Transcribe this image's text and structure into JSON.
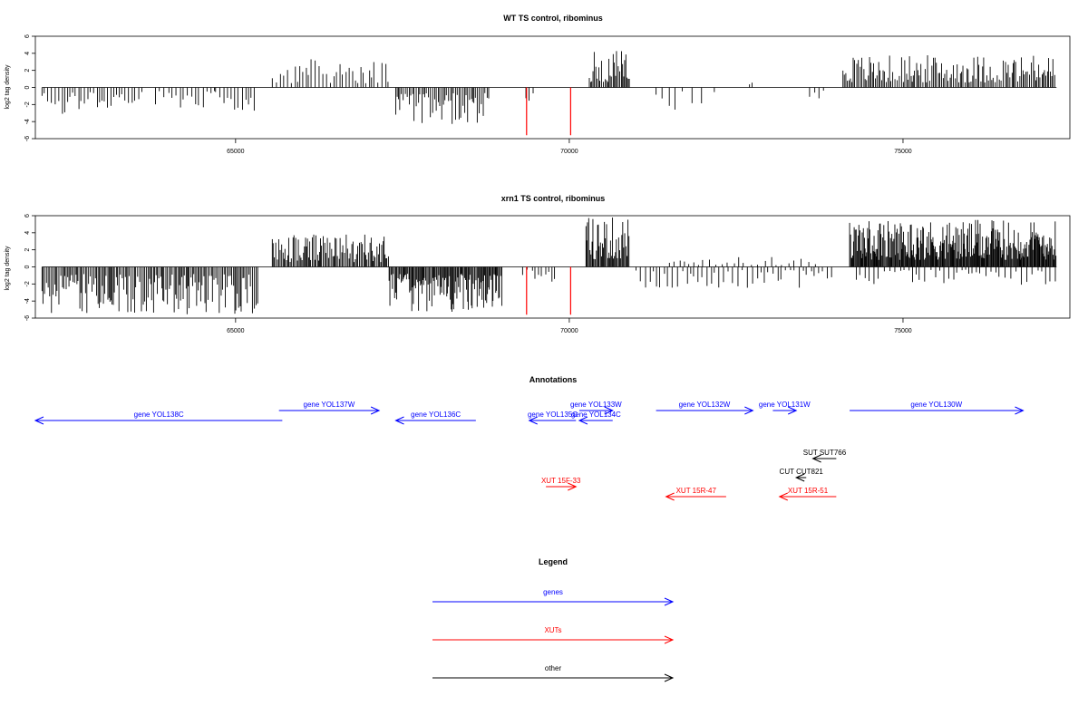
{
  "chart_data": [
    {
      "type": "bar",
      "title": "WT TS control, ribominus",
      "ylabel": "log2 tag density",
      "xlabel": "",
      "xlim": [
        62000,
        77500
      ],
      "ylim": [
        -6,
        6
      ],
      "xticks": [
        65000,
        70000,
        75000
      ],
      "xtick_labels": [
        "65000",
        "70000",
        "75000"
      ],
      "yticks": [
        -6,
        -4,
        -2,
        0,
        2,
        4,
        6
      ],
      "ytick_labels": [
        "-6",
        "-4",
        "-2",
        "0",
        "2",
        "4",
        "6"
      ],
      "grid": false,
      "bar_color": "#000000",
      "highlight_color": "#ff0000",
      "highlights": [
        {
          "x": 69360,
          "y": -5.6
        },
        {
          "x": 70020,
          "y": -5.6
        }
      ],
      "regions": [
        {
          "start": 62100,
          "end": 63600,
          "sign": -1,
          "max": 3.2,
          "step": 45
        },
        {
          "start": 63800,
          "end": 64700,
          "sign": -1,
          "max": 2.5,
          "step": 60
        },
        {
          "start": 64700,
          "end": 65300,
          "sign": -1,
          "max": 3.0,
          "step": 55
        },
        {
          "start": 65550,
          "end": 67300,
          "sign": 1,
          "max": 3.3,
          "step": 45
        },
        {
          "start": 67400,
          "end": 68800,
          "sign": -1,
          "max": 4.3,
          "step": 25
        },
        {
          "start": 69350,
          "end": 69500,
          "sign": -1,
          "max": 2.0,
          "step": 50
        },
        {
          "start": 70300,
          "end": 70900,
          "sign": 1,
          "max": 4.3,
          "step": 22
        },
        {
          "start": 71300,
          "end": 72300,
          "sign": -1,
          "max": 3.0,
          "step": 140
        },
        {
          "start": 72700,
          "end": 72750,
          "sign": 1,
          "max": 1.0,
          "step": 30
        },
        {
          "start": 73600,
          "end": 73900,
          "sign": -1,
          "max": 1.5,
          "step": 80
        },
        {
          "start": 74100,
          "end": 77300,
          "sign": 1,
          "max": 3.8,
          "step": 25
        }
      ]
    },
    {
      "type": "bar",
      "title": "xrn1 TS control, ribominus",
      "ylabel": "log2 tag density",
      "xlabel": "",
      "xlim": [
        62000,
        77500
      ],
      "ylim": [
        -6,
        6
      ],
      "xticks": [
        65000,
        70000,
        75000
      ],
      "xtick_labels": [
        "65000",
        "70000",
        "75000"
      ],
      "yticks": [
        -6,
        -4,
        -2,
        0,
        2,
        4,
        6
      ],
      "ytick_labels": [
        "-6",
        "-4",
        "-2",
        "0",
        "2",
        "4",
        "6"
      ],
      "grid": false,
      "bar_color": "#000000",
      "highlight_color": "#ff0000",
      "highlights": [
        {
          "x": 69360,
          "y": -5.6
        },
        {
          "x": 70020,
          "y": -5.6
        }
      ],
      "regions": [
        {
          "start": 62100,
          "end": 65350,
          "sign": -1,
          "max": 5.6,
          "step": 22
        },
        {
          "start": 65550,
          "end": 67300,
          "sign": 1,
          "max": 3.8,
          "step": 20
        },
        {
          "start": 67300,
          "end": 69000,
          "sign": -1,
          "max": 5.4,
          "step": 15
        },
        {
          "start": 69300,
          "end": 69800,
          "sign": -1,
          "max": 2.0,
          "step": 60
        },
        {
          "start": 70250,
          "end": 70900,
          "sign": 1,
          "max": 5.9,
          "step": 15
        },
        {
          "start": 71000,
          "end": 74000,
          "sign": -1,
          "max": 2.5,
          "step": 60
        },
        {
          "start": 71500,
          "end": 73700,
          "sign": 1,
          "max": 1.2,
          "step": 90
        },
        {
          "start": 74200,
          "end": 77300,
          "sign": 1,
          "max": 5.5,
          "step": 12
        },
        {
          "start": 74300,
          "end": 77300,
          "sign": -1,
          "max": 2.2,
          "step": 70
        }
      ]
    }
  ],
  "annotations": {
    "title": "Annotations",
    "features": [
      {
        "label": "gene YOL138C",
        "color": "#0000ff",
        "start": 62000,
        "end": 65700,
        "strand": "-",
        "lane": 1
      },
      {
        "label": "gene YOL137W",
        "color": "#0000ff",
        "start": 65650,
        "end": 67150,
        "strand": "+",
        "lane": 0
      },
      {
        "label": "gene YOL136C",
        "color": "#0000ff",
        "start": 67400,
        "end": 68600,
        "strand": "-",
        "lane": 1
      },
      {
        "label": "gene YOL135C",
        "color": "#0000ff",
        "start": 69400,
        "end": 70100,
        "strand": "-",
        "lane": 1
      },
      {
        "label": "gene YOL133W",
        "color": "#0000ff",
        "start": 70150,
        "end": 70650,
        "strand": "+",
        "lane": 0
      },
      {
        "label": "gene YOL134C",
        "color": "#0000ff",
        "start": 70150,
        "end": 70650,
        "strand": "-",
        "lane": 1
      },
      {
        "label": "gene YOL132W",
        "color": "#0000ff",
        "start": 71300,
        "end": 72750,
        "strand": "+",
        "lane": 0
      },
      {
        "label": "gene YOL131W",
        "color": "#0000ff",
        "start": 73050,
        "end": 73400,
        "strand": "+",
        "lane": 0
      },
      {
        "label": "gene YOL130W",
        "color": "#0000ff",
        "start": 74200,
        "end": 76800,
        "strand": "+",
        "lane": 0
      },
      {
        "label": "SUT SUT766",
        "color": "#000000",
        "start": 73650,
        "end": 74000,
        "strand": "-",
        "lane": 2
      },
      {
        "label": "CUT CUT821",
        "color": "#000000",
        "start": 73400,
        "end": 73550,
        "strand": "-",
        "lane": 3
      },
      {
        "label": "XUT 15F-33",
        "color": "#ff0000",
        "start": 69650,
        "end": 70100,
        "strand": "+",
        "lane": 4
      },
      {
        "label": "XUT 15R-47",
        "color": "#ff0000",
        "start": 71450,
        "end": 72350,
        "strand": "-",
        "lane": 5
      },
      {
        "label": "XUT 15R-51",
        "color": "#ff0000",
        "start": 73150,
        "end": 74000,
        "strand": "-",
        "lane": 5
      }
    ]
  },
  "legend": {
    "title": "Legend",
    "entries": [
      {
        "label": "genes",
        "color": "#0000ff"
      },
      {
        "label": "XUTs",
        "color": "#ff0000"
      },
      {
        "label": "other",
        "color": "#000000"
      }
    ]
  }
}
